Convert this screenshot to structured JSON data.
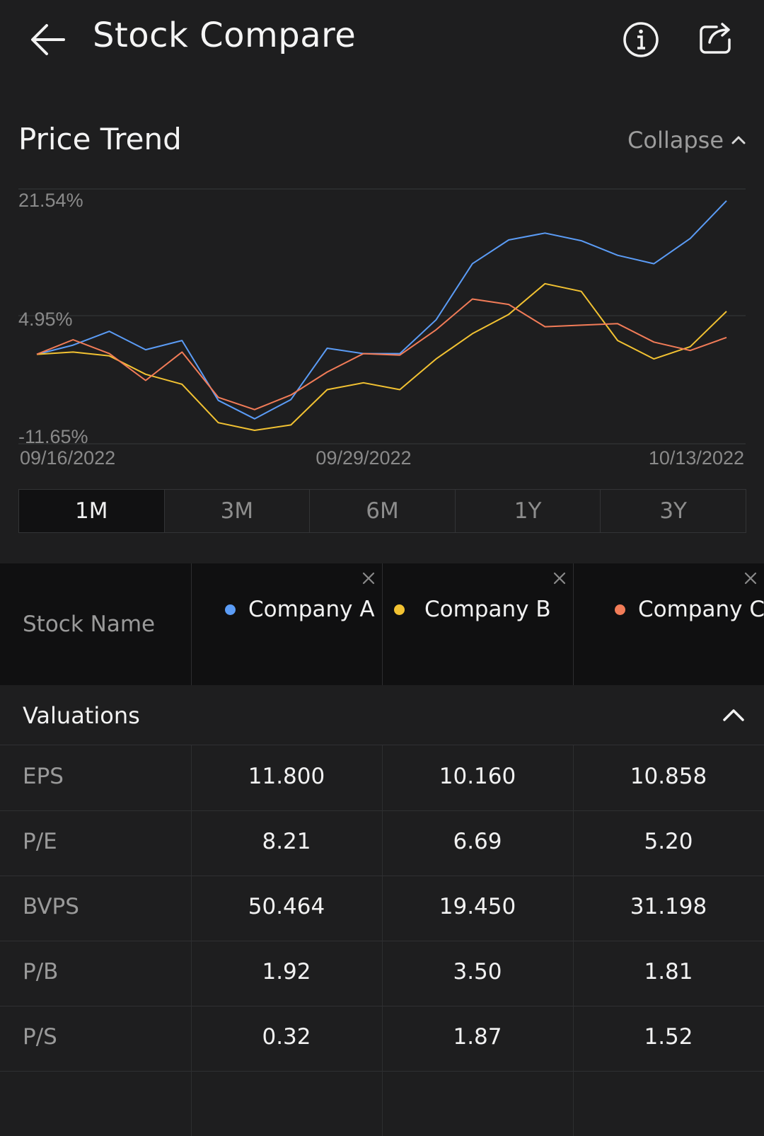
{
  "header": {
    "title": "Stock Compare"
  },
  "price_trend": {
    "title": "Price Trend",
    "collapse_label": "Collapse"
  },
  "range_tabs": [
    {
      "label": "1M",
      "active": true
    },
    {
      "label": "3M",
      "active": false
    },
    {
      "label": "6M",
      "active": false
    },
    {
      "label": "1Y",
      "active": false
    },
    {
      "label": "3Y",
      "active": false
    }
  ],
  "chart_data": {
    "type": "line",
    "y_labels": [
      "21.54%",
      "4.95%",
      "-11.65%"
    ],
    "ylim": [
      -11.65,
      21.54
    ],
    "x_labels": [
      "09/16/2022",
      "09/29/2022",
      "10/13/2022"
    ],
    "series": [
      {
        "name": "Company A",
        "color": "#5b9cf6",
        "values": [
          0,
          1.2,
          3.0,
          0.6,
          1.8,
          -6.0,
          -8.4,
          -5.9,
          0.8,
          0.1,
          0.1,
          4.5,
          11.8,
          14.9,
          15.8,
          14.8,
          12.9,
          11.8,
          15.1,
          20.0
        ]
      },
      {
        "name": "Company B",
        "color": "#f2c232",
        "values": [
          0,
          0.3,
          -0.2,
          -2.6,
          -3.9,
          -8.9,
          -9.9,
          -9.2,
          -4.6,
          -3.7,
          -4.6,
          -0.6,
          2.7,
          5.2,
          9.2,
          8.2,
          1.8,
          -0.6,
          1.0,
          5.6
        ]
      },
      {
        "name": "Company C",
        "color": "#f27c58",
        "values": [
          0,
          1.9,
          0.1,
          -3.4,
          0.3,
          -5.6,
          -7.2,
          -5.3,
          -2.3,
          0.1,
          -0.1,
          3.2,
          7.2,
          6.5,
          3.6,
          3.8,
          4.0,
          1.6,
          0.5,
          2.2
        ]
      }
    ]
  },
  "table": {
    "stock_name_label": "Stock Name",
    "companies": [
      {
        "name": "Company A",
        "color": "#5b9cf6"
      },
      {
        "name": "Company B",
        "color": "#f2c232"
      },
      {
        "name": "Company C",
        "color": "#f27c58"
      }
    ],
    "section_label": "Valuations",
    "rows": [
      {
        "label": "EPS",
        "values": [
          "11.800",
          "10.160",
          "10.858"
        ]
      },
      {
        "label": "P/E",
        "values": [
          "8.21",
          "6.69",
          "5.20"
        ]
      },
      {
        "label": "BVPS",
        "values": [
          "50.464",
          "19.450",
          "31.198"
        ]
      },
      {
        "label": "P/B",
        "values": [
          "1.92",
          "3.50",
          "1.81"
        ]
      },
      {
        "label": "P/S",
        "values": [
          "0.32",
          "1.87",
          "1.52"
        ]
      }
    ]
  }
}
